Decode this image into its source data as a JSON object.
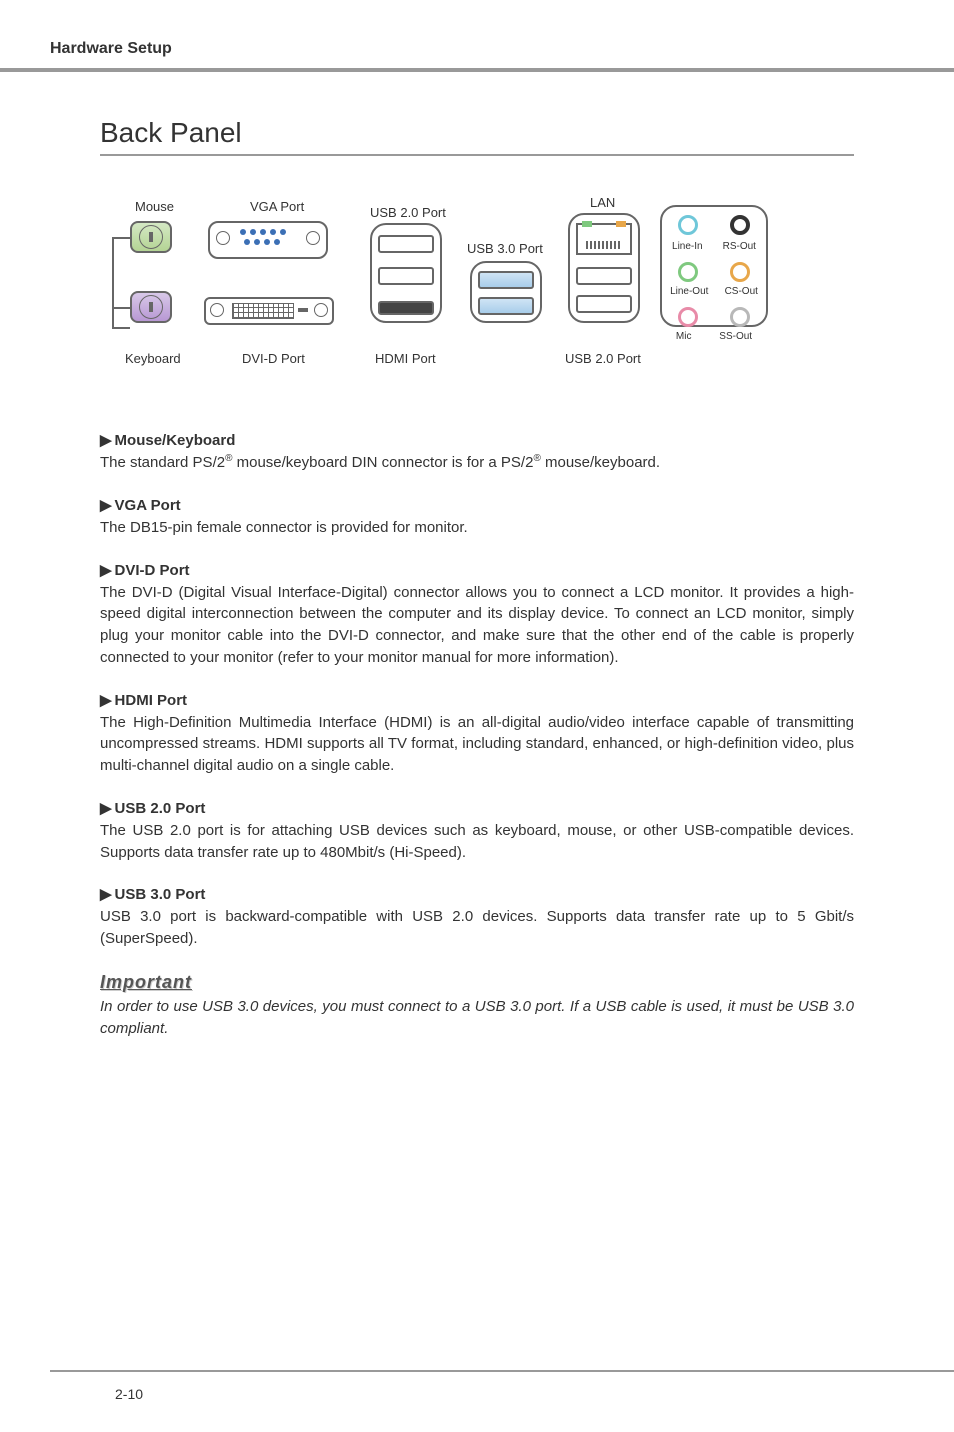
{
  "header": {
    "title": "Hardware Setup"
  },
  "main": {
    "title": "Back Panel",
    "diagram": {
      "labels": {
        "mouse": "Mouse",
        "vga": "VGA Port",
        "usb20_top": "USB 2.0 Port",
        "usb30": "USB 3.0 Port",
        "lan": "LAN",
        "keyboard": "Keyboard",
        "dvid": "DVI-D Port",
        "hdmi": "HDMI Port",
        "usb20_bottom": "USB 2.0 Port",
        "linein": "Line-In",
        "rsout": "RS-Out",
        "lineout": "Line-Out",
        "csout": "CS-Out",
        "mic": "Mic",
        "ssout": "SS-Out"
      },
      "colors": {
        "linein_circle": "#6fc7d9",
        "rsout_circle": "#333333",
        "lineout_circle": "#7fc97f",
        "csout_circle": "#e8a74a",
        "mic_circle": "#e88ba8",
        "ssout_circle": "#b8b8b8"
      }
    },
    "sections": [
      {
        "heading": "Mouse/Keyboard",
        "text_html": "The standard PS/2<sup>®</sup> mouse/keyboard DIN connector is for a PS/2<sup>®</sup> mouse/keyboard."
      },
      {
        "heading": "VGA Port",
        "text_html": "The DB15-pin female connector is provided for monitor."
      },
      {
        "heading": "DVI-D Port",
        "text_html": "The DVI-D (Digital Visual Interface-Digital) connector allows you to connect a LCD monitor. It provides a high-speed digital interconnection between the computer and its display device. To connect an LCD monitor, simply plug your monitor cable into the DVI-D connector, and make sure that the other end of the cable is properly connected to your monitor (refer to your monitor manual for more information)."
      },
      {
        "heading": "HDMI Port",
        "text_html": "The High-Definition Multimedia Interface (HDMI) is an all-digital audio/video interface capable of transmitting uncompressed streams. HDMI supports all TV format, including standard, enhanced, or high-definition video, plus multi-channel digital audio on a single cable."
      },
      {
        "heading": "USB 2.0 Port",
        "text_html": "The USB 2.0 port is for attaching USB devices such as keyboard, mouse, or other USB-compatible devices. Supports data transfer rate up to 480Mbit/s (Hi-Speed)."
      },
      {
        "heading": "USB 3.0 Port",
        "text_html": "USB 3.0 port is backward-compatible with USB 2.0 devices. Supports data transfer rate up to 5 Gbit/s (SuperSpeed)."
      }
    ],
    "important": {
      "heading": "Important",
      "text": "In order to use USB 3.0 devices, you must connect to a USB 3.0 port. If a USB cable is used, it must be USB 3.0 compliant."
    }
  },
  "footer": {
    "page": "2-10"
  }
}
